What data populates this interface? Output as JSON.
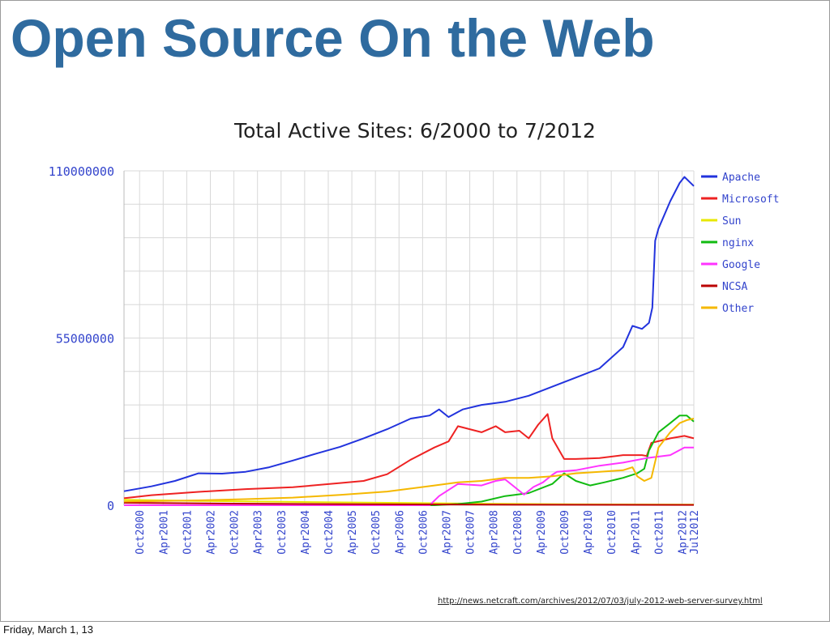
{
  "slide": {
    "title": "Open Source On the Web",
    "source_url": "http://news.netcraft.com/archives/2012/07/03/july-2012-web-server-survey.html",
    "footer_date": "Friday, March 1, 13"
  },
  "chart_data": {
    "type": "line",
    "title": "Total Active Sites: 6/2000 to 7/2012",
    "xlabel": "",
    "ylabel": "",
    "ylim": [
      0,
      110000000
    ],
    "yticks": [
      "110000000",
      "55000000",
      "0"
    ],
    "ytick_values": [
      110000000,
      55000000,
      0
    ],
    "xlim": [
      2000.42,
      2012.5
    ],
    "xticks": [
      "Oct2000",
      "Apr2001",
      "Oct2001",
      "Apr2002",
      "Oct2002",
      "Apr2003",
      "Oct2003",
      "Apr2004",
      "Oct2004",
      "Apr2005",
      "Oct2005",
      "Apr2006",
      "Oct2006",
      "Apr2007",
      "Oct2007",
      "Apr2008",
      "Oct2008",
      "Apr2009",
      "Oct2009",
      "Apr2010",
      "Oct2010",
      "Apr2011",
      "Oct2011",
      "Apr2012",
      "Jul2012"
    ],
    "xtick_values": [
      2000.75,
      2001.25,
      2001.75,
      2002.25,
      2002.75,
      2003.25,
      2003.75,
      2004.25,
      2004.75,
      2005.25,
      2005.75,
      2006.25,
      2006.75,
      2007.25,
      2007.75,
      2008.25,
      2008.75,
      2009.25,
      2009.75,
      2010.25,
      2010.75,
      2011.25,
      2011.75,
      2012.25,
      2012.5
    ],
    "grid": true,
    "legend_position": "right",
    "series": [
      {
        "name": "Apache",
        "color": "#2233dd",
        "x": [
          2000.42,
          2001.0,
          2001.5,
          2002.0,
          2002.5,
          2003.0,
          2003.5,
          2004.0,
          2004.5,
          2005.0,
          2005.5,
          2006.0,
          2006.5,
          2006.9,
          2007.1,
          2007.3,
          2007.6,
          2008.0,
          2008.5,
          2009.0,
          2009.5,
          2010.0,
          2010.5,
          2011.0,
          2011.2,
          2011.4,
          2011.55,
          2011.62,
          2011.68,
          2011.75,
          2012.0,
          2012.2,
          2012.3,
          2012.5
        ],
        "y": [
          4600000,
          6200000,
          8000000,
          10500000,
          10400000,
          11000000,
          12500000,
          14700000,
          17000000,
          19200000,
          22000000,
          25000000,
          28500000,
          29500000,
          31500000,
          29000000,
          31500000,
          33000000,
          34000000,
          36000000,
          39000000,
          42000000,
          45000000,
          52000000,
          59000000,
          58000000,
          60000000,
          65000000,
          87000000,
          91000000,
          100000000,
          106000000,
          108000000,
          105000000
        ]
      },
      {
        "name": "Microsoft",
        "color": "#ee2222",
        "x": [
          2000.42,
          2001.0,
          2002.0,
          2003.0,
          2004.0,
          2005.0,
          2005.5,
          2006.0,
          2006.5,
          2007.0,
          2007.3,
          2007.5,
          2008.0,
          2008.3,
          2008.5,
          2008.8,
          2009.0,
          2009.2,
          2009.4,
          2009.5,
          2009.75,
          2010.0,
          2010.5,
          2011.0,
          2011.4,
          2011.5,
          2011.6,
          2012.0,
          2012.3,
          2012.5
        ],
        "y": [
          2300000,
          3300000,
          4400000,
          5300000,
          5900000,
          7300000,
          8000000,
          10200000,
          15000000,
          19000000,
          21000000,
          26000000,
          24000000,
          26000000,
          24000000,
          24500000,
          22000000,
          26500000,
          30000000,
          22000000,
          15200000,
          15200000,
          15500000,
          16500000,
          16500000,
          16200000,
          20500000,
          22000000,
          22800000,
          22000000
        ]
      },
      {
        "name": "Sun",
        "color": "#e8e800",
        "x": [
          2000.42,
          2002.0,
          2004.0,
          2006.0,
          2008.0,
          2010.0,
          2012.5
        ],
        "y": [
          1800000,
          1400000,
          1100000,
          800000,
          500000,
          300000,
          200000
        ]
      },
      {
        "name": "nginx",
        "color": "#11bb11",
        "x": [
          2000.42,
          2007.0,
          2007.5,
          2008.0,
          2008.5,
          2009.0,
          2009.5,
          2009.75,
          2010.0,
          2010.3,
          2010.6,
          2011.0,
          2011.3,
          2011.45,
          2011.55,
          2011.75,
          2012.0,
          2012.2,
          2012.35,
          2012.5
        ],
        "y": [
          0,
          0,
          400000,
          1200000,
          3000000,
          4000000,
          7000000,
          10500000,
          8000000,
          6500000,
          7500000,
          9000000,
          10500000,
          12000000,
          18000000,
          24000000,
          27000000,
          29500000,
          29500000,
          27500000
        ]
      },
      {
        "name": "Google",
        "color": "#ff33ff",
        "x": [
          2000.42,
          2006.9,
          2007.1,
          2007.5,
          2008.0,
          2008.3,
          2008.5,
          2008.7,
          2008.9,
          2009.1,
          2009.3,
          2009.5,
          2009.6,
          2010.0,
          2010.5,
          2011.0,
          2011.5,
          2012.0,
          2012.3,
          2012.5
        ],
        "y": [
          0,
          0,
          3000000,
          7000000,
          6500000,
          8000000,
          8500000,
          6000000,
          3500000,
          6000000,
          7500000,
          10000000,
          11000000,
          11500000,
          13000000,
          14000000,
          15500000,
          16500000,
          19000000,
          19000000
        ]
      },
      {
        "name": "NCSA",
        "color": "#bb0000",
        "x": [
          2000.42,
          2003.0,
          2006.0,
          2009.0,
          2012.5
        ],
        "y": [
          800000,
          500000,
          300000,
          150000,
          100000
        ]
      },
      {
        "name": "Other",
        "color": "#f5b800",
        "x": [
          2000.42,
          2002.0,
          2003.0,
          2004.0,
          2005.0,
          2006.0,
          2006.5,
          2007.0,
          2007.5,
          2008.0,
          2008.5,
          2009.0,
          2009.5,
          2010.0,
          2010.5,
          2011.0,
          2011.2,
          2011.3,
          2011.45,
          2011.6,
          2011.75,
          2012.0,
          2012.2,
          2012.35,
          2012.5
        ],
        "y": [
          1200000,
          1600000,
          2000000,
          2500000,
          3400000,
          4500000,
          5500000,
          6500000,
          7500000,
          8000000,
          9000000,
          9000000,
          9500000,
          10500000,
          11000000,
          11500000,
          12500000,
          9500000,
          8000000,
          9000000,
          19000000,
          24000000,
          27000000,
          28000000,
          28500000
        ]
      }
    ]
  }
}
